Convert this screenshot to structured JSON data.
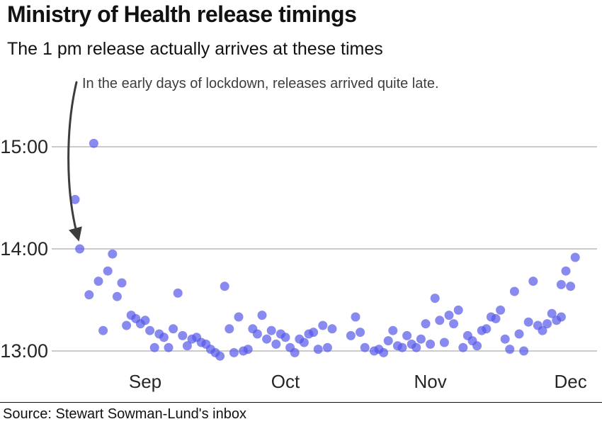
{
  "header": {
    "title": "Ministry of Health release timings",
    "subtitle": "The 1 pm release actually arrives at these times"
  },
  "annotation": {
    "text": "In the early days of lockdown, releases arrived quite late."
  },
  "footer": {
    "source": "Source: Stewart Sowman-Lund's inbox"
  },
  "chart_data": {
    "type": "scatter",
    "title": "Ministry of Health release timings",
    "subtitle": "The 1 pm release actually arrives at these times",
    "xlabel": "",
    "ylabel": "",
    "x_ticks": [
      "Sep",
      "Oct",
      "Nov",
      "Dec"
    ],
    "y_ticks": [
      "13:00",
      "14:00",
      "15:00"
    ],
    "xlim": [
      "Aug 15",
      "Dec 4"
    ],
    "ylim": [
      "12:55",
      "15:10"
    ],
    "grid": "horizontal",
    "legend": "none",
    "point_color": "#5558e8",
    "point_opacity": 0.7,
    "grid_color": "#cbcbcb",
    "annotation_color": "#3d3d3d",
    "points": [
      [
        "Aug 17",
        "14:29"
      ],
      [
        "Aug 18",
        "14:00"
      ],
      [
        "Aug 20",
        "13:33"
      ],
      [
        "Aug 21",
        "15:02"
      ],
      [
        "Aug 22",
        "13:41"
      ],
      [
        "Aug 23",
        "13:12"
      ],
      [
        "Aug 24",
        "13:47"
      ],
      [
        "Aug 25",
        "13:57"
      ],
      [
        "Aug 26",
        "13:32"
      ],
      [
        "Aug 27",
        "13:40"
      ],
      [
        "Aug 28",
        "13:15"
      ],
      [
        "Aug 29",
        "13:21"
      ],
      [
        "Aug 30",
        "13:19"
      ],
      [
        "Aug 31",
        "13:16"
      ],
      [
        "Sep 1",
        "13:18"
      ],
      [
        "Sep 2",
        "13:12"
      ],
      [
        "Sep 3",
        "13:02"
      ],
      [
        "Sep 4",
        "13:10"
      ],
      [
        "Sep 5",
        "13:08"
      ],
      [
        "Sep 6",
        "13:02"
      ],
      [
        "Sep 7",
        "13:13"
      ],
      [
        "Sep 8",
        "13:34"
      ],
      [
        "Sep 9",
        "13:09"
      ],
      [
        "Sep 10",
        "13:03"
      ],
      [
        "Sep 11",
        "13:07"
      ],
      [
        "Sep 12",
        "13:08"
      ],
      [
        "Sep 13",
        "13:05"
      ],
      [
        "Sep 14",
        "13:04"
      ],
      [
        "Sep 15",
        "13:01"
      ],
      [
        "Sep 16",
        "12:59"
      ],
      [
        "Sep 17",
        "12:57"
      ],
      [
        "Sep 18",
        "13:38"
      ],
      [
        "Sep 19",
        "13:13"
      ],
      [
        "Sep 20",
        "12:59"
      ],
      [
        "Sep 21",
        "13:20"
      ],
      [
        "Sep 22",
        "13:00"
      ],
      [
        "Sep 23",
        "13:01"
      ],
      [
        "Sep 24",
        "13:13"
      ],
      [
        "Sep 25",
        "13:10"
      ],
      [
        "Sep 26",
        "13:21"
      ],
      [
        "Sep 27",
        "13:07"
      ],
      [
        "Sep 28",
        "13:12"
      ],
      [
        "Sep 29",
        "13:04"
      ],
      [
        "Sep 30",
        "13:10"
      ],
      [
        "Oct 1",
        "13:08"
      ],
      [
        "Oct 2",
        "13:02"
      ],
      [
        "Oct 3",
        "12:59"
      ],
      [
        "Oct 4",
        "13:07"
      ],
      [
        "Oct 5",
        "13:05"
      ],
      [
        "Oct 6",
        "13:10"
      ],
      [
        "Oct 7",
        "13:11"
      ],
      [
        "Oct 8",
        "13:01"
      ],
      [
        "Oct 9",
        "13:15"
      ],
      [
        "Oct 10",
        "13:02"
      ],
      [
        "Oct 11",
        "13:13"
      ],
      [
        "Oct 15",
        "13:09"
      ],
      [
        "Oct 16",
        "13:20"
      ],
      [
        "Oct 17",
        "13:11"
      ],
      [
        "Oct 18",
        "13:02"
      ],
      [
        "Oct 20",
        "13:00"
      ],
      [
        "Oct 21",
        "13:01"
      ],
      [
        "Oct 22",
        "12:59"
      ],
      [
        "Oct 23",
        "13:06"
      ],
      [
        "Oct 24",
        "13:12"
      ],
      [
        "Oct 25",
        "13:03"
      ],
      [
        "Oct 26",
        "13:02"
      ],
      [
        "Oct 27",
        "13:09"
      ],
      [
        "Oct 28",
        "13:04"
      ],
      [
        "Oct 29",
        "13:02"
      ],
      [
        "Oct 30",
        "13:07"
      ],
      [
        "Oct 31",
        "13:16"
      ],
      [
        "Nov 1",
        "13:04"
      ],
      [
        "Nov 2",
        "13:31"
      ],
      [
        "Nov 3",
        "13:18"
      ],
      [
        "Nov 4",
        "13:05"
      ],
      [
        "Nov 5",
        "13:21"
      ],
      [
        "Nov 6",
        "13:16"
      ],
      [
        "Nov 7",
        "13:24"
      ],
      [
        "Nov 8",
        "13:02"
      ],
      [
        "Nov 9",
        "13:09"
      ],
      [
        "Nov 10",
        "13:06"
      ],
      [
        "Nov 11",
        "13:03"
      ],
      [
        "Nov 12",
        "13:12"
      ],
      [
        "Nov 13",
        "13:13"
      ],
      [
        "Nov 14",
        "13:20"
      ],
      [
        "Nov 15",
        "13:19"
      ],
      [
        "Nov 16",
        "13:24"
      ],
      [
        "Nov 17",
        "13:07"
      ],
      [
        "Nov 18",
        "13:01"
      ],
      [
        "Nov 19",
        "13:35"
      ],
      [
        "Nov 20",
        "13:10"
      ],
      [
        "Nov 21",
        "13:00"
      ],
      [
        "Nov 22",
        "13:17"
      ],
      [
        "Nov 23",
        "13:41"
      ],
      [
        "Nov 24",
        "13:15"
      ],
      [
        "Nov 25",
        "13:12"
      ],
      [
        "Nov 26",
        "13:16"
      ],
      [
        "Nov 27",
        "13:22"
      ],
      [
        "Nov 28",
        "13:18"
      ],
      [
        "Nov 29",
        "13:20"
      ],
      [
        "Nov 29",
        "13:39"
      ],
      [
        "Nov 30",
        "13:47"
      ],
      [
        "Dec 1",
        "13:38"
      ],
      [
        "Dec 2",
        "13:55"
      ]
    ]
  }
}
